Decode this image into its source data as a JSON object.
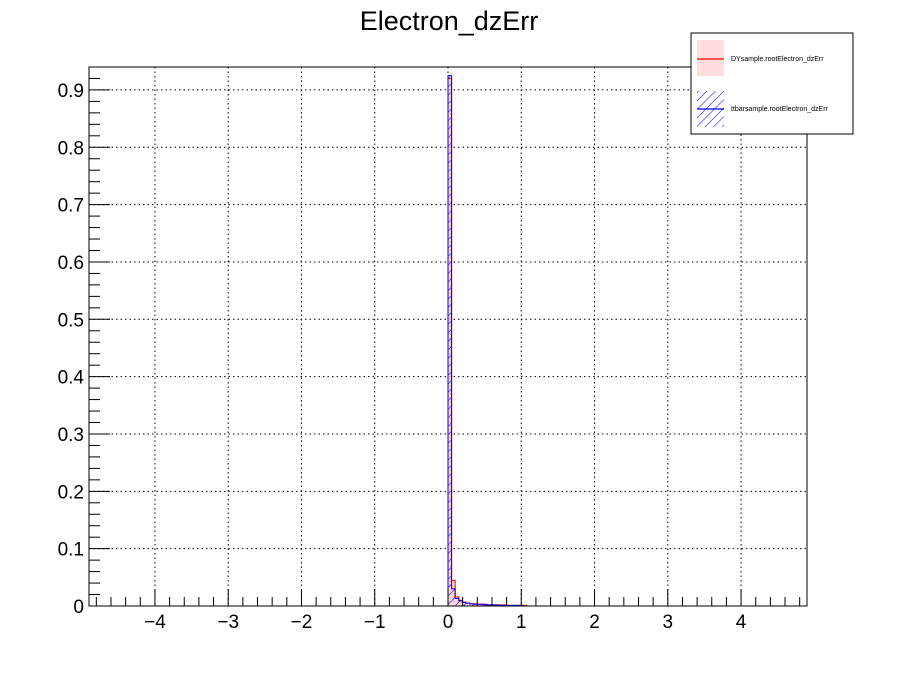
{
  "chart_data": {
    "type": "histogram",
    "title": "Electron_dzErr",
    "xlabel": "",
    "ylabel": "",
    "xlim": [
      -4.9,
      4.9
    ],
    "ylim": [
      0,
      0.94
    ],
    "x_ticks": [
      -4,
      -3,
      -2,
      -1,
      0,
      1,
      2,
      3,
      4
    ],
    "x_tick_labels": [
      "−4",
      "−3",
      "−2",
      "−1",
      "0",
      "1",
      "2",
      "3",
      "4"
    ],
    "y_ticks": [
      0,
      0.1,
      0.2,
      0.3,
      0.4,
      0.5,
      0.6,
      0.7,
      0.8,
      0.9
    ],
    "y_tick_labels": [
      "0",
      "0.1",
      "0.2",
      "0.3",
      "0.4",
      "0.5",
      "0.6",
      "0.7",
      "0.8",
      "0.9"
    ],
    "grid": true,
    "legend_position": "top-right",
    "bin_width": 0.049,
    "series": [
      {
        "name": "DYsample.rootElectron_dzErr",
        "color": "#ff0000",
        "fill": "#ffcccc",
        "x": [
          -0.0245,
          0.0245,
          0.0735,
          0.1225,
          0.1715,
          0.2205,
          0.2695,
          0.3185,
          0.3675,
          0.4165,
          0.4655,
          0.5145,
          0.5635,
          0.6125,
          0.6615,
          0.7105,
          0.7595,
          0.8085,
          0.8575,
          0.9065,
          0.9555,
          1.0045,
          1.0535,
          1.1025,
          1.1515,
          1.2005
        ],
        "values": [
          0.0,
          0.92,
          0.045,
          0.016,
          0.01,
          0.007,
          0.005,
          0.004,
          0.004,
          0.003,
          0.003,
          0.003,
          0.002,
          0.002,
          0.002,
          0.002,
          0.002,
          0.001,
          0.001,
          0.001,
          0.001,
          0.001,
          0.001,
          0.0,
          0.0,
          0.0
        ]
      },
      {
        "name": "ttbarsample.rootElectron_dzErr",
        "color": "#0000ff",
        "fill": "#0000ff",
        "x": [
          -0.0245,
          0.0245,
          0.0735,
          0.1225,
          0.1715,
          0.2205,
          0.2695,
          0.3185,
          0.3675,
          0.4165,
          0.4655,
          0.5145,
          0.5635,
          0.6125,
          0.6615,
          0.7105,
          0.7595,
          0.8085,
          0.8575,
          0.9065,
          0.9555,
          1.0045,
          1.0535,
          1.1025,
          1.1515,
          1.2005
        ],
        "values": [
          0.0,
          0.925,
          0.03,
          0.013,
          0.009,
          0.006,
          0.005,
          0.004,
          0.003,
          0.003,
          0.003,
          0.002,
          0.002,
          0.002,
          0.002,
          0.001,
          0.001,
          0.001,
          0.001,
          0.001,
          0.001,
          0.001,
          0.0,
          0.0,
          0.0,
          0.0
        ]
      }
    ]
  }
}
